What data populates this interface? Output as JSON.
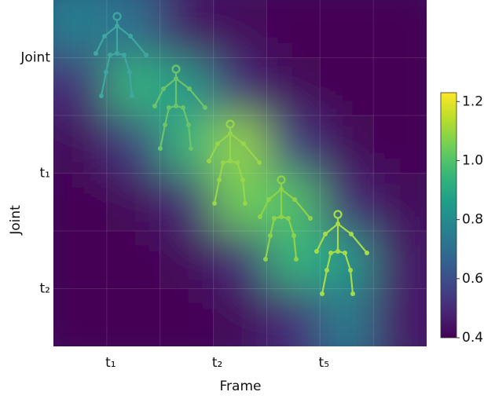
{
  "chart_data": {
    "type": "heatmap",
    "xlabel": "Frame",
    "ylabel": "Joint",
    "xtick_labels": [
      "t₁",
      "t₂",
      "t₅"
    ],
    "ytick_labels": [
      "Joint",
      "t₁",
      "t₂"
    ],
    "values": [
      [
        0.75,
        0.7,
        0.45,
        0.42,
        0.4,
        0.4,
        0.4
      ],
      [
        0.5,
        0.95,
        0.85,
        0.5,
        0.42,
        0.4,
        0.4
      ],
      [
        0.42,
        0.55,
        0.95,
        1.1,
        0.55,
        0.42,
        0.4
      ],
      [
        0.4,
        0.42,
        0.5,
        1.05,
        1.0,
        0.5,
        0.42
      ],
      [
        0.4,
        0.4,
        0.42,
        0.5,
        0.95,
        0.85,
        0.45
      ],
      [
        0.4,
        0.4,
        0.4,
        0.42,
        0.5,
        0.75,
        0.45
      ]
    ],
    "colormap": "viridis",
    "clim": [
      0.4,
      1.23
    ],
    "cticks": [
      0.4,
      0.6,
      0.8,
      {
        "value": 1,
        "label": "1.0"
      },
      1.2
    ]
  }
}
